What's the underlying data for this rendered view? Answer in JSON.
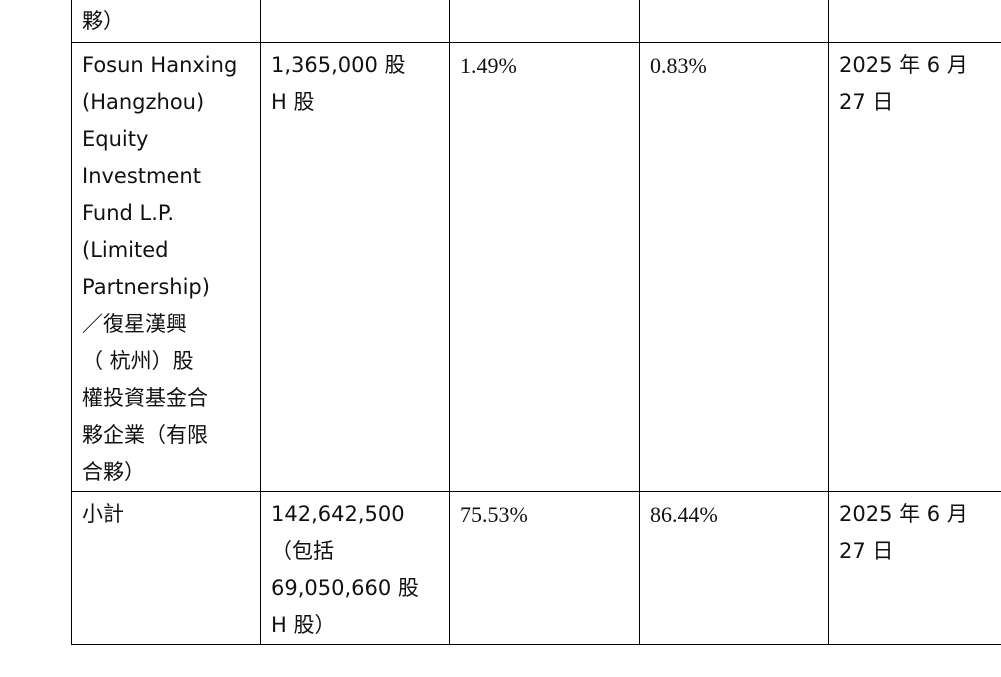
{
  "table": {
    "top_row": {
      "name_tail": "夥）"
    },
    "fosun_row": {
      "name_lines": [
        "Fosun Hanxing",
        "(Hangzhou)",
        "Equity",
        "Investment",
        "Fund L.P.",
        "(Limited",
        "Partnership)",
        "／復星漢興",
        "（ 杭州）股",
        "權投資基金合",
        "夥企業（有限",
        "合夥）"
      ],
      "shares_lines": [
        "1,365,000 股",
        "H 股"
      ],
      "pct_a": "1.49%",
      "pct_b": "0.83%",
      "date_lines": [
        "2025 年 6 月",
        "27 日"
      ]
    },
    "total_row": {
      "label": "小計",
      "shares_lines": [
        "142,642,500",
        "（包括",
        "69,050,660 股",
        "H 股）"
      ],
      "pct_a": "75.53%",
      "pct_b": "86.44%",
      "date_lines": [
        "2025 年 6 月",
        "27 日"
      ]
    }
  }
}
